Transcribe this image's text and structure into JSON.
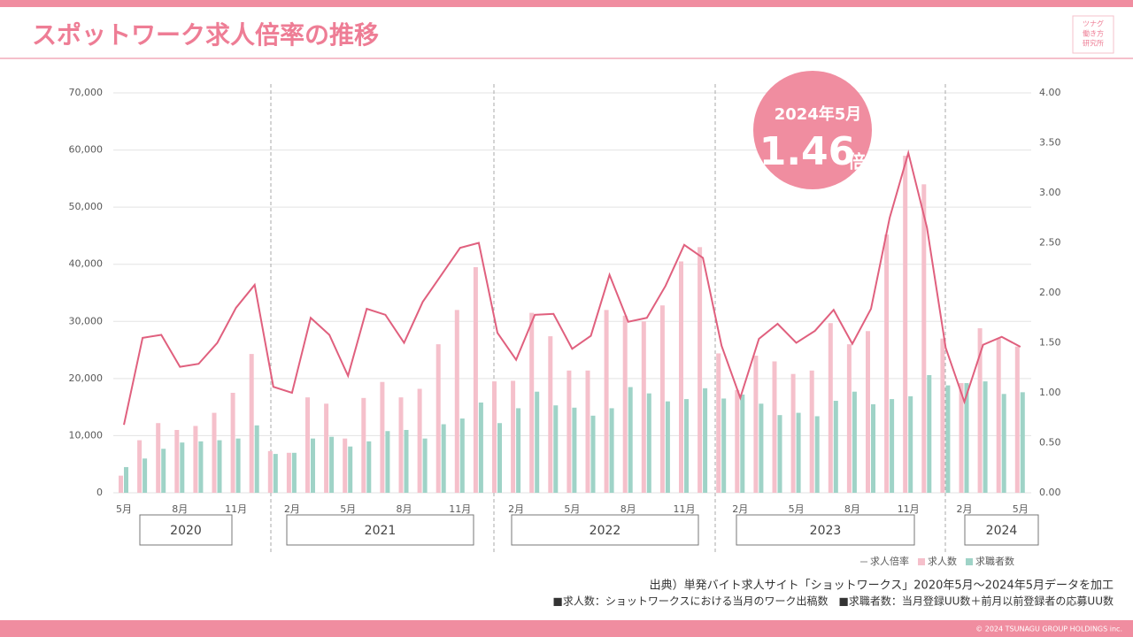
{
  "title": "スポットワーク求人倍率の推移",
  "logo": [
    "ツナグ",
    "働き方",
    "研究所"
  ],
  "chart_data": {
    "type": "bar_line",
    "categories": [
      "5月",
      null,
      null,
      "8月",
      null,
      null,
      "11月",
      null,
      null,
      "2月",
      null,
      null,
      "5月",
      null,
      null,
      "8月",
      null,
      null,
      "11月",
      null,
      null,
      "2月",
      null,
      null,
      "5月",
      null,
      null,
      "8月",
      null,
      null,
      "11月",
      null,
      null,
      "2月",
      null,
      null,
      "5月",
      null,
      null,
      "8月",
      null,
      null,
      "11月",
      null,
      null,
      "2月",
      null,
      null,
      "5月"
    ],
    "years": [
      "2020",
      "2021",
      "2022",
      "2023",
      "2024"
    ],
    "series": [
      {
        "name": "求人倍率",
        "color": "#e0607e",
        "axis": "y2",
        "kind": "line",
        "values": [
          0.68,
          1.55,
          1.58,
          1.26,
          1.29,
          1.5,
          1.85,
          2.08,
          1.06,
          1.0,
          1.75,
          1.58,
          1.17,
          1.84,
          1.78,
          1.5,
          1.91,
          2.18,
          2.45,
          2.5,
          1.6,
          1.33,
          1.78,
          1.79,
          1.44,
          1.57,
          2.18,
          1.71,
          1.75,
          2.07,
          2.48,
          2.35,
          1.47,
          0.95,
          1.54,
          1.69,
          1.5,
          1.62,
          1.83,
          1.49,
          1.84,
          2.75,
          3.4,
          2.65,
          1.45,
          0.91,
          1.48,
          1.56,
          1.46
        ]
      },
      {
        "name": "求人数",
        "color": "#f5c0cb",
        "kind": "bar",
        "values": [
          3000,
          9200,
          12200,
          11000,
          11700,
          14000,
          17500,
          24300,
          7300,
          7000,
          16700,
          15600,
          9500,
          16600,
          19400,
          16700,
          18200,
          26000,
          32000,
          39500,
          19500,
          19600,
          31500,
          27400,
          21400,
          21400,
          32000,
          31000,
          30000,
          32800,
          40500,
          43000,
          24400,
          18000,
          24000,
          23000,
          20800,
          21400,
          29700,
          26000,
          28300,
          45200,
          59000,
          54000,
          27000,
          19200,
          28800,
          27000,
          25600
        ]
      },
      {
        "name": "求職者数",
        "color": "#9fd3c7",
        "kind": "bar",
        "values": [
          4500,
          6000,
          7700,
          8800,
          9000,
          9200,
          9500,
          11800,
          6800,
          7000,
          9500,
          9800,
          8100,
          9000,
          10800,
          11000,
          9500,
          12000,
          13000,
          15800,
          12200,
          14800,
          17700,
          15300,
          14900,
          13500,
          14800,
          18500,
          17400,
          16000,
          16400,
          18300,
          16500,
          17200,
          15600,
          13600,
          14000,
          13400,
          16100,
          17700,
          15500,
          16400,
          16900,
          20600,
          18800,
          19200,
          19500,
          17300,
          17600
        ]
      }
    ],
    "ylim": [
      0,
      70000
    ],
    "yticks": [
      0,
      {
        "value": 10000,
        "label": "10,000"
      },
      {
        "value": 20000,
        "label": "20,000"
      },
      {
        "value": 30000,
        "label": "30,000"
      },
      {
        "value": 40000,
        "label": "40,000"
      },
      {
        "value": 50000,
        "label": "50,000"
      },
      {
        "value": 60000,
        "label": "60,000"
      },
      {
        "value": 70000,
        "label": "70,000"
      }
    ],
    "y2lim": [
      0,
      4
    ],
    "y2ticks": [
      {
        "value": 0,
        "label": "0.00"
      },
      {
        "value": 0.5,
        "label": "0.50"
      },
      {
        "value": 1,
        "label": "1.00"
      },
      {
        "value": 1.5,
        "label": "1.50"
      },
      {
        "value": 2,
        "label": "2.00"
      },
      {
        "value": 2.5,
        "label": "2.50"
      },
      {
        "value": 3,
        "label": "3.00"
      },
      {
        "value": 3.5,
        "label": "3.50"
      },
      {
        "value": 4,
        "label": "4.00"
      }
    ],
    "grid": true,
    "callout": {
      "date": "2024年5月",
      "value": "1.46",
      "unit": "倍"
    }
  },
  "source": "出典）単発バイト求人サイト「ショットワークス」2020年5月～2024年5月データを加工",
  "note": "■求人数：ショットワークスにおける当月のワーク出稿数　■求職者数：当月登録UU数＋前月以前登録者の応募UU数",
  "copyright": "© 2024 TSUNAGU GROUP HOLDINGS inc."
}
